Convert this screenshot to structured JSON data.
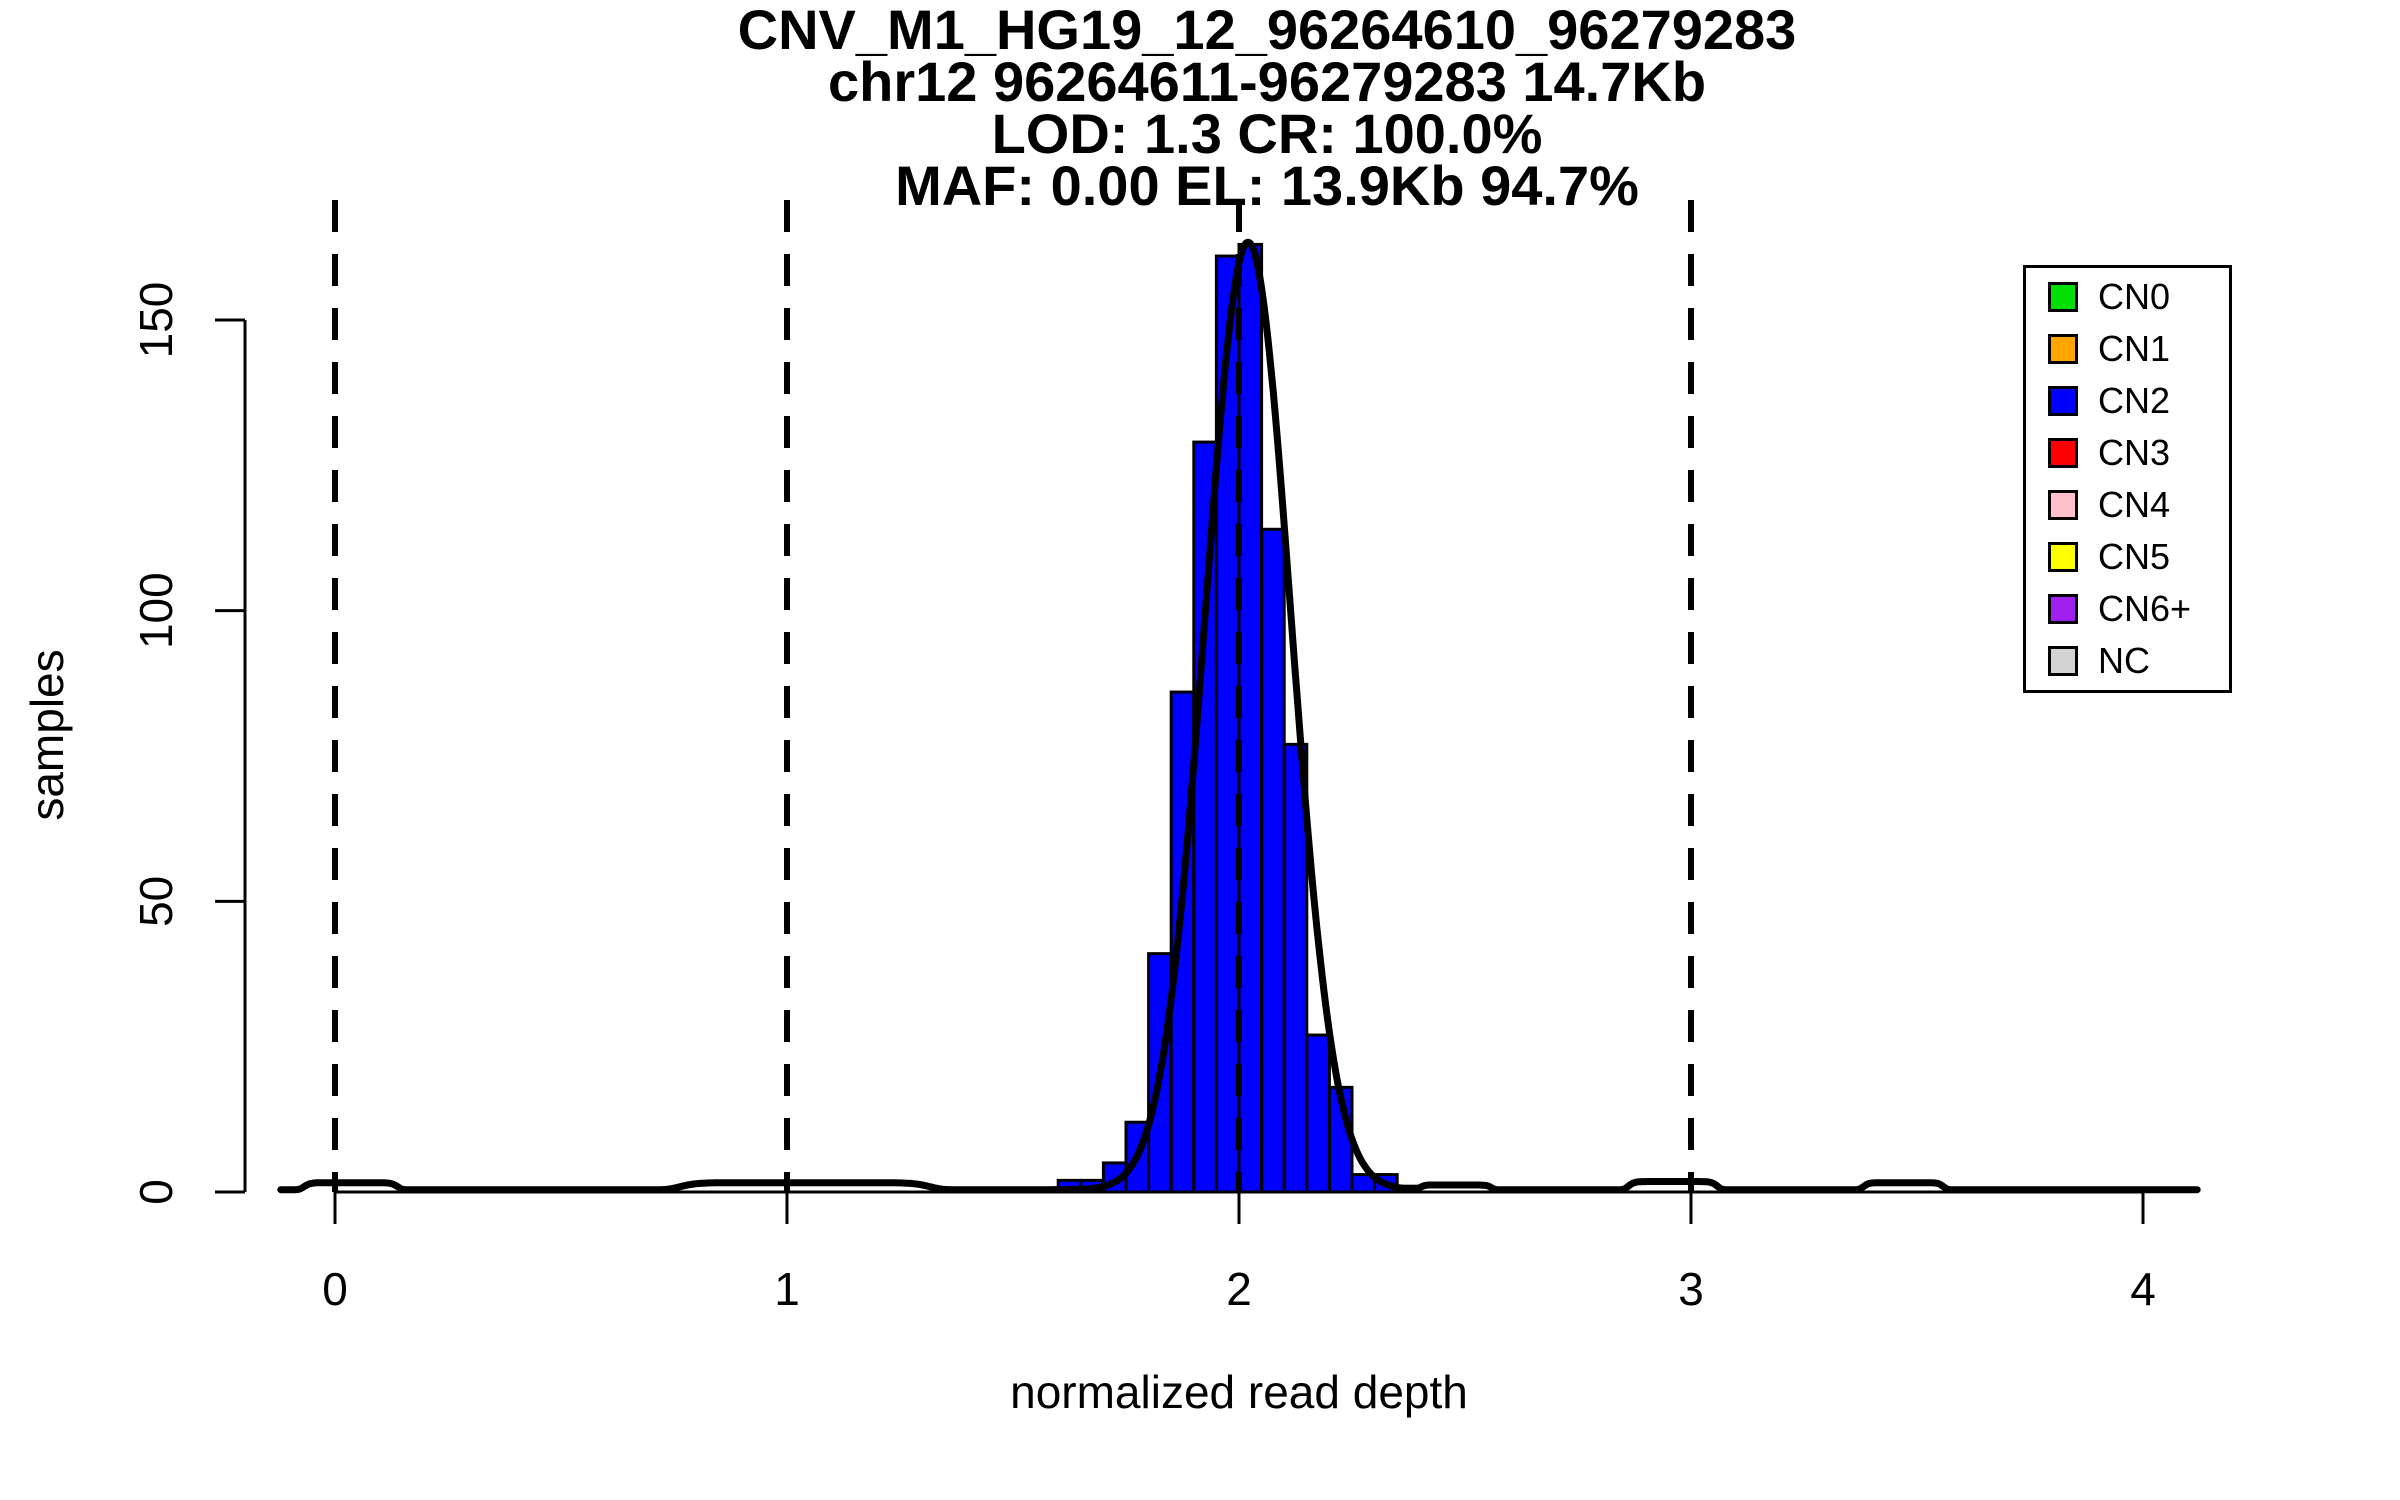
{
  "title_lines": [
    "CNV_M1_HG19_12_96264610_96279283",
    "chr12 96264611-96279283 14.7Kb",
    "LOD: 1.3 CR: 100.0%",
    "MAF: 0.00 EL: 13.9Kb 94.7%"
  ],
  "axes": {
    "x": {
      "label": "normalized read depth",
      "ticks": [
        "0",
        "1",
        "2",
        "3",
        "4"
      ],
      "tick_values": [
        0,
        1,
        2,
        3,
        4
      ]
    },
    "y": {
      "label": "samples",
      "ticks": [
        "0",
        "50",
        "100",
        "150"
      ],
      "tick_values": [
        0,
        50,
        100,
        150
      ]
    }
  },
  "legend": {
    "items": [
      {
        "label": "CN0",
        "color": "#00E000"
      },
      {
        "label": "CN1",
        "color": "#FFA500"
      },
      {
        "label": "CN2",
        "color": "#0000FF"
      },
      {
        "label": "CN3",
        "color": "#FF0000"
      },
      {
        "label": "CN4",
        "color": "#FFC0CB"
      },
      {
        "label": "CN5",
        "color": "#FFFF00"
      },
      {
        "label": "CN6+",
        "color": "#A020F0"
      },
      {
        "label": "NC",
        "color": "#D3D3D3"
      }
    ]
  },
  "chart_data": {
    "type": "bar",
    "title": "CNV_M1_HG19_12_96264610_96279283 / chr12 96264611-96279283 14.7Kb / LOD: 1.3 CR: 100.0% / MAF: 0.00 EL: 13.9Kb 94.7%",
    "xlabel": "normalized read depth",
    "ylabel": "samples",
    "xlim": [
      -0.12,
      4.12
    ],
    "ylim": [
      0,
      170
    ],
    "grid": false,
    "legend_position": "top-right",
    "bin_width": 0.05,
    "bars_format": "[bin_start, sample_count]",
    "bars": [
      [
        1.6,
        2
      ],
      [
        1.65,
        2
      ],
      [
        1.7,
        5
      ],
      [
        1.75,
        12
      ],
      [
        1.8,
        41
      ],
      [
        1.85,
        86
      ],
      [
        1.9,
        129
      ],
      [
        1.95,
        161
      ],
      [
        2.0,
        163
      ],
      [
        2.05,
        114
      ],
      [
        2.1,
        77
      ],
      [
        2.15,
        27
      ],
      [
        2.2,
        18
      ],
      [
        2.25,
        3
      ],
      [
        2.3,
        3
      ],
      [
        2.35,
        1
      ]
    ],
    "fit_curve": {
      "shape": "gaussian",
      "mean": 2.02,
      "sigma": 0.095,
      "amplitude": 163,
      "baseline": 0.4
    },
    "baseline_bumps_format": "[x_start, x_end, height]",
    "baseline_bumps": [
      [
        -0.07,
        0.14,
        1.2
      ],
      [
        0.76,
        1.32,
        1.2
      ],
      [
        2.4,
        2.56,
        0.8
      ],
      [
        2.86,
        3.06,
        1.4
      ],
      [
        3.38,
        3.56,
        1.2
      ]
    ],
    "dashed_guides_x": [
      0,
      1,
      2,
      3
    ],
    "colors": {
      "bar_fill": "#0000FF",
      "bar_stroke": "#000000",
      "curve": "#000000",
      "axis": "#000000",
      "dashed_guide": "#000000"
    }
  }
}
